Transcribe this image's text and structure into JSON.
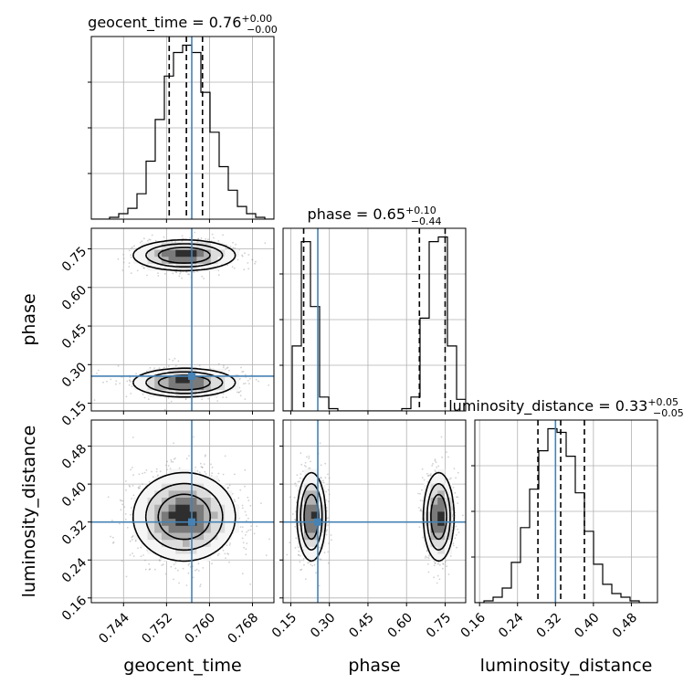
{
  "chart_data": {
    "type": "corner",
    "parameters": [
      "geocent_time",
      "phase",
      "luminosity_distance"
    ],
    "ranges": {
      "geocent_time": [
        0.738,
        0.772
      ],
      "phase": [
        0.12,
        0.83
      ],
      "luminosity_distance": [
        0.15,
        0.535
      ]
    },
    "truths": {
      "geocent_time": 0.7567,
      "phase": 0.255,
      "luminosity_distance": 0.32
    },
    "quantiles": {
      "geocent_time": [
        0.7525,
        0.7557,
        0.7587
      ],
      "phase": [
        0.2,
        0.65,
        0.75
      ],
      "luminosity_distance": [
        0.283,
        0.331,
        0.381
      ]
    },
    "titles": {
      "geocent_time": {
        "name": "geocent_time",
        "value": "0.76",
        "plus": "+0.00",
        "minus": "−0.00"
      },
      "phase": {
        "name": "phase",
        "value": "0.65",
        "plus": "+0.10",
        "minus": "−0.44"
      },
      "luminosity_distance": {
        "name": "luminosity_distance",
        "value": "0.33",
        "plus": "+0.05",
        "minus": "−0.05"
      }
    },
    "axis_labels": {
      "geocent_time": "geocent_time",
      "phase": "phase",
      "luminosity_distance": "luminosity_distance"
    },
    "ticks": {
      "geocent_time": [
        "0.744",
        "0.752",
        "0.760",
        "0.768"
      ],
      "phase": [
        "0.15",
        "0.30",
        "0.45",
        "0.60",
        "0.75"
      ],
      "luminosity_distance": [
        "0.16",
        "0.24",
        "0.32",
        "0.40",
        "0.48"
      ]
    },
    "histograms": {
      "geocent_time": {
        "edges": [
          0.738,
          0.7397,
          0.7414,
          0.7431,
          0.7448,
          0.7465,
          0.7482,
          0.7499,
          0.7516,
          0.7533,
          0.755,
          0.7567,
          0.7584,
          0.7601,
          0.7618,
          0.7635,
          0.7652,
          0.7669,
          0.7686,
          0.7703,
          0.772
        ],
        "counts": [
          0,
          0,
          1,
          3,
          6,
          14,
          32,
          55,
          79,
          92,
          96,
          92,
          70,
          48,
          29,
          16,
          7,
          3,
          1,
          0
        ]
      },
      "phase": {
        "edges": [
          0.12,
          0.1555,
          0.191,
          0.2265,
          0.262,
          0.2975,
          0.333,
          0.3685,
          0.404,
          0.4395,
          0.475,
          0.5105,
          0.546,
          0.5815,
          0.617,
          0.6525,
          0.688,
          0.7235,
          0.759,
          0.7945,
          0.83
        ],
        "counts": [
          0,
          28,
          73,
          45,
          6,
          1,
          0,
          0,
          0,
          0,
          0,
          0,
          0,
          1,
          6,
          40,
          73,
          75,
          28,
          5
        ]
      },
      "luminosity_distance": {
        "edges": [
          0.15,
          0.16925,
          0.1885,
          0.20775,
          0.227,
          0.24625,
          0.2655,
          0.28475,
          0.304,
          0.32325,
          0.3425,
          0.36175,
          0.381,
          0.40025,
          0.4195,
          0.43875,
          0.458,
          0.47725,
          0.4965,
          0.51575,
          0.535
        ],
        "counts": [
          0,
          1,
          3,
          8,
          22,
          41,
          62,
          83,
          95,
          93,
          80,
          60,
          39,
          21,
          10,
          5,
          3,
          1,
          0,
          0
        ]
      }
    },
    "grid": true,
    "truth_color": "#4682b4"
  }
}
